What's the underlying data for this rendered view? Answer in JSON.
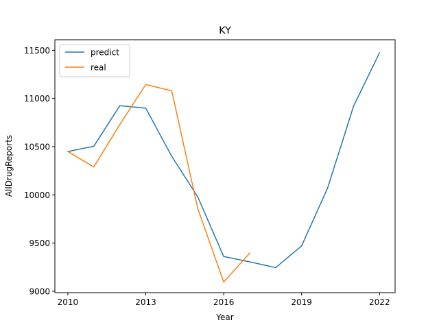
{
  "chart_data": {
    "type": "line",
    "title": "KY",
    "xlabel": "Year",
    "ylabel": "AllDrugReports",
    "xlim": [
      2009.5,
      2022.6
    ],
    "ylim": [
      8985,
      11610
    ],
    "xticks": [
      2010,
      2013,
      2016,
      2019,
      2022
    ],
    "yticks": [
      9000,
      9500,
      10000,
      10500,
      11000,
      11500
    ],
    "xtick_labels": [
      "2010",
      "2013",
      "2016",
      "2019",
      "2022"
    ],
    "ytick_labels": [
      "9000",
      "9500",
      "10000",
      "10500",
      "11000",
      "11500"
    ],
    "grid": false,
    "legend_position": "top-left",
    "series": [
      {
        "name": "predict",
        "color": "#1f77b4",
        "x": [
          2010,
          2011,
          2012,
          2013,
          2014,
          2015,
          2016,
          2017,
          2018,
          2019,
          2020,
          2021,
          2022
        ],
        "y": [
          10450,
          10505,
          10925,
          10900,
          10400,
          9980,
          9360,
          9305,
          9245,
          9470,
          10070,
          10920,
          11475
        ]
      },
      {
        "name": "real",
        "color": "#ff7f0e",
        "x": [
          2010,
          2011,
          2012,
          2013,
          2014,
          2015,
          2016,
          2017
        ],
        "y": [
          10450,
          10290,
          10730,
          11145,
          11080,
          9860,
          9095,
          9395
        ]
      }
    ]
  }
}
